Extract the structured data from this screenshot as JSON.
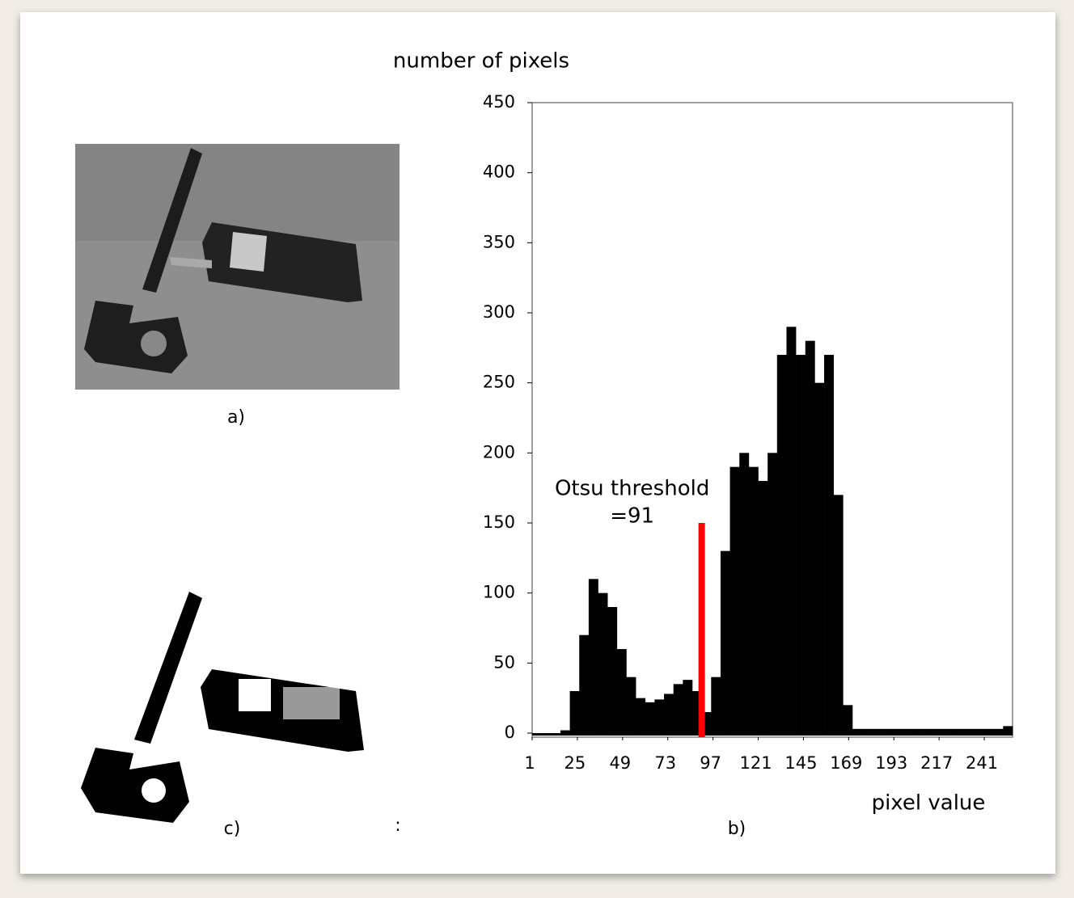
{
  "chart_data": {
    "type": "histogram",
    "ylabel": "number of pixels",
    "xlabel": "pixel value",
    "bins": [
      1,
      6,
      11,
      16,
      21,
      26,
      31,
      36,
      41,
      46,
      51,
      56,
      61,
      66,
      71,
      76,
      81,
      86,
      91,
      96,
      101,
      106,
      111,
      116,
      121,
      126,
      131,
      136,
      141,
      146,
      151,
      156,
      161,
      166,
      171,
      176,
      181,
      186,
      191,
      196,
      201,
      206,
      211,
      216,
      221,
      226,
      231,
      236,
      241,
      246,
      251,
      256
    ],
    "counts": [
      0,
      0,
      0,
      2,
      30,
      70,
      110,
      100,
      90,
      60,
      40,
      25,
      22,
      24,
      28,
      35,
      38,
      30,
      15,
      40,
      130,
      190,
      200,
      190,
      180,
      200,
      270,
      290,
      270,
      280,
      250,
      270,
      170,
      20,
      3,
      3,
      3,
      3,
      3,
      3,
      3,
      3,
      3,
      3,
      3,
      3,
      3,
      3,
      3,
      3,
      5
    ],
    "color": "#000000",
    "xlim": [
      1,
      256
    ],
    "ylim": [
      0,
      450
    ],
    "xticks": [
      1,
      25,
      49,
      73,
      97,
      121,
      145,
      169,
      193,
      217,
      241
    ],
    "yticks": [
      0,
      50,
      100,
      150,
      200,
      250,
      300,
      350,
      400,
      450
    ],
    "threshold": {
      "x": 91,
      "y": 150,
      "color": "#ff0000",
      "label": [
        "Otsu threshold",
        "=91"
      ]
    }
  },
  "panels": {
    "a": "a)",
    "b": "b)",
    "c": "c)",
    "mark": ":"
  }
}
